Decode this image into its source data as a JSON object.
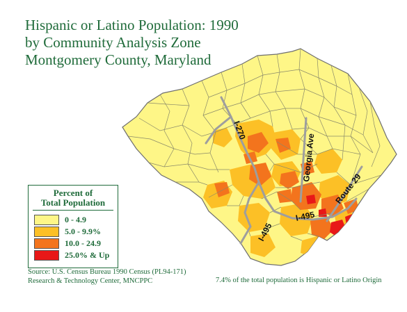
{
  "title": {
    "line1": "Hispanic or Latino Population: 1990",
    "line2": "by Community Analysis Zone",
    "line3": "Montgomery County, Maryland"
  },
  "legend": {
    "title_line1": "Percent of",
    "title_line2": "Total Population",
    "items": [
      {
        "label": "0 - 4.9",
        "color": "#fef687"
      },
      {
        "label": "5.0 - 9.9%",
        "color": "#fcc026"
      },
      {
        "label": "10.0 - 24.9",
        "color": "#f3741d"
      },
      {
        "label": "25.0% & Up",
        "color": "#e81818"
      }
    ]
  },
  "road_labels": {
    "i270": "I-270",
    "georgia": "Georgia Ave",
    "route29": "Route 29",
    "i495_east": "I-495",
    "i495_west": "I-495"
  },
  "source": {
    "line1": "Source: U.S. Census Bureau 1990 Census (PL94-171)",
    "line2": "Research & Technology Center, MNCPPC"
  },
  "note": "7.4% of the total population is Hispanic or Latino Origin",
  "colors": {
    "title": "#1f6b3a",
    "boundary": "#7a7a7a",
    "highway": "#9e9e9e"
  }
}
